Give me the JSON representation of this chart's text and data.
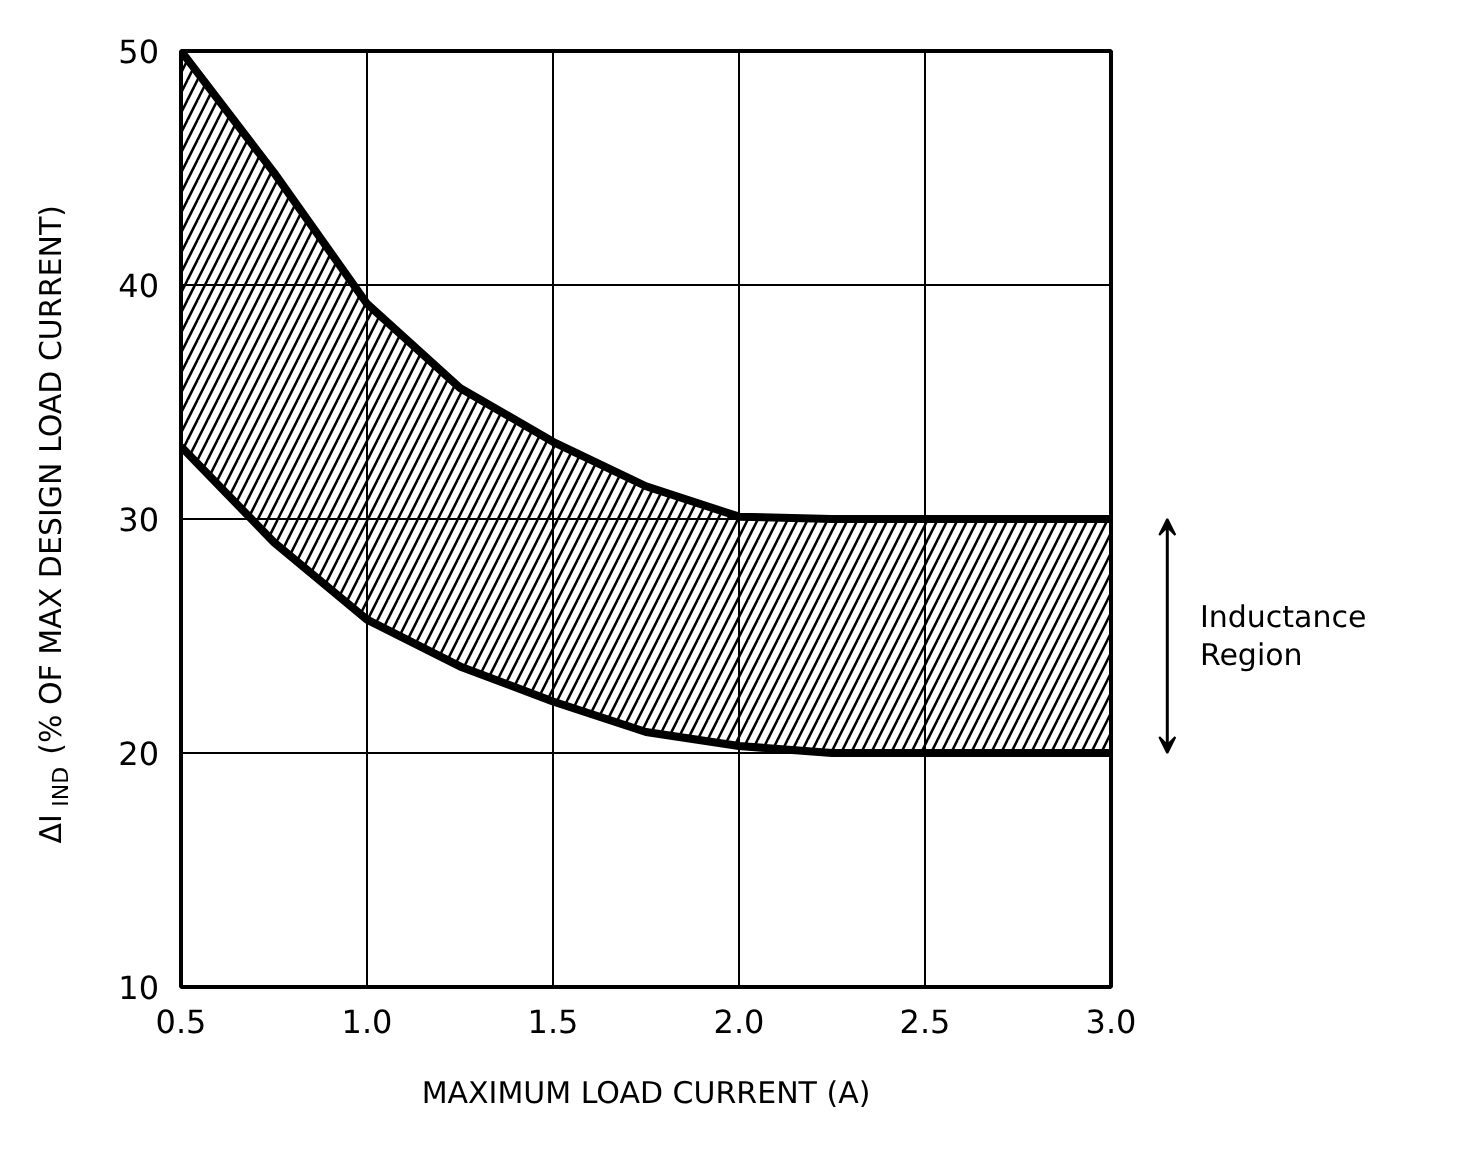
{
  "chart_data": {
    "type": "line",
    "xlabel": "MAXIMUM LOAD CURRENT (A)",
    "ylabel": "ΔI$_{IND}$ (% OF MAX DESIGN LOAD CURRENT)",
    "x": [
      0.5,
      0.75,
      1.0,
      1.25,
      1.5,
      1.75,
      2.0,
      2.25,
      2.5,
      3.0
    ],
    "series": [
      {
        "type": "area",
        "color": "#000000",
        "values": [
          50,
          44.8,
          39.2,
          35.6,
          33.3,
          31.4,
          30.1,
          30,
          30,
          30
        ]
      },
      {
        "color": "#000000",
        "values": [
          33.1,
          29,
          25.7,
          23.7,
          22.2,
          20.9,
          20.3,
          20,
          20,
          20
        ]
      }
    ],
    "xlim": [
      0.5,
      3.0
    ],
    "ylim": [
      10,
      50
    ],
    "xticks": [
      0.5,
      {
        "value": 1,
        "label": "1.0"
      },
      1.5,
      {
        "value": 2,
        "label": "2.0"
      },
      2.5,
      {
        "value": 3,
        "label": "3.0"
      }
    ],
    "yticks": [
      10,
      20,
      30,
      40,
      50
    ],
    "grid": true,
    "line_style": "solid",
    "annotations": [
      "Inductance Region"
    ]
  }
}
